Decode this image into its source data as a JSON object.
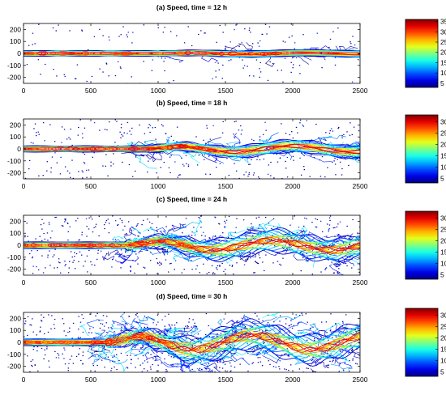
{
  "chart_data": [
    {
      "type": "contour",
      "title": "(a) Speed, time = 12 h",
      "x_ticks": [
        0,
        500,
        1000,
        1500,
        2000,
        2500
      ],
      "y_ticks": [
        200,
        100,
        0,
        -100,
        -200
      ],
      "xlim": [
        0,
        2500
      ],
      "ylim": [
        -250,
        250
      ],
      "colorbar": {
        "ticks": [
          35,
          30,
          25,
          20,
          15,
          10,
          5
        ],
        "range": [
          3,
          36
        ]
      },
      "jet": {
        "core_width": 20,
        "meander_start": 1000,
        "meander_amp": 5,
        "spread": 6,
        "peak": 33
      }
    },
    {
      "type": "contour",
      "title": "(b) Speed, time = 18 h",
      "x_ticks": [
        0,
        500,
        1000,
        1500,
        2000,
        2500
      ],
      "y_ticks": [
        200,
        100,
        0,
        -100,
        -200
      ],
      "xlim": [
        0,
        2500
      ],
      "ylim": [
        -250,
        250
      ],
      "colorbar": {
        "ticks": [
          30,
          25,
          20,
          15,
          10,
          5
        ],
        "range": [
          3,
          33
        ]
      },
      "jet": {
        "core_width": 22,
        "meander_start": 900,
        "meander_amp": 25,
        "spread": 30,
        "peak": 31
      }
    },
    {
      "type": "contour",
      "title": "(c) Speed, time = 24 h",
      "x_ticks": [
        0,
        500,
        1000,
        1500,
        2000,
        2500
      ],
      "y_ticks": [
        200,
        100,
        0,
        -100,
        -200
      ],
      "xlim": [
        0,
        2500
      ],
      "ylim": [
        -250,
        250
      ],
      "colorbar": {
        "ticks": [
          30,
          25,
          20,
          15,
          10,
          5
        ],
        "range": [
          3,
          33
        ]
      },
      "jet": {
        "core_width": 24,
        "meander_start": 750,
        "meander_amp": 40,
        "spread": 70,
        "peak": 30
      }
    },
    {
      "type": "contour",
      "title": "(d) Speed, time = 30 h",
      "x_ticks": [
        0,
        500,
        1000,
        1500,
        2000,
        2500
      ],
      "y_ticks": [
        200,
        100,
        0,
        -100,
        -200
      ],
      "xlim": [
        0,
        2500
      ],
      "ylim": [
        -250,
        250
      ],
      "colorbar": {
        "ticks": [
          30,
          25,
          20,
          15,
          10,
          5
        ],
        "range": [
          3,
          33
        ]
      },
      "jet": {
        "core_width": 24,
        "meander_start": 600,
        "meander_amp": 60,
        "spread": 95,
        "peak": 30
      }
    }
  ]
}
